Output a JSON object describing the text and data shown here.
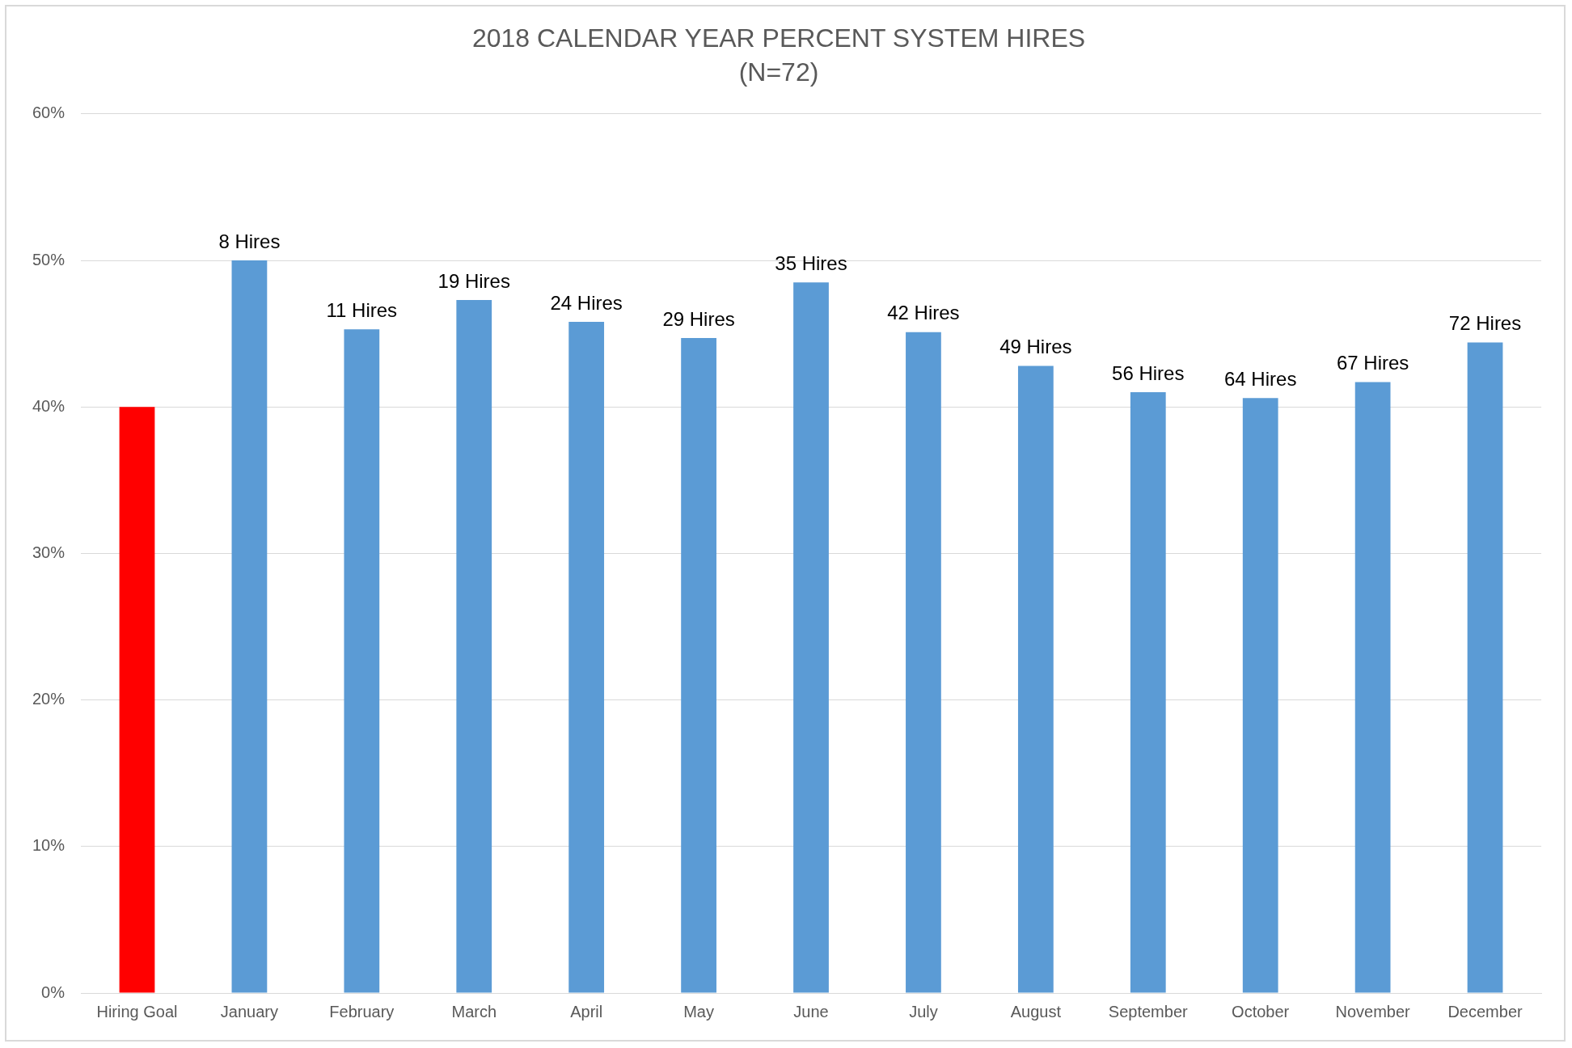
{
  "chart_data": {
    "type": "bar",
    "title": "2018 CALENDAR YEAR PERCENT SYSTEM HIRES",
    "subtitle": "(N=72)",
    "categories": [
      "Hiring Goal",
      "January",
      "February",
      "March",
      "April",
      "May",
      "June",
      "July",
      "August",
      "September",
      "October",
      "November",
      "December"
    ],
    "values": [
      40,
      50,
      45.3,
      47.3,
      45.8,
      44.7,
      48.5,
      45.1,
      42.8,
      41.0,
      40.6,
      41.7,
      44.4
    ],
    "colors": [
      "#ff0000",
      "#5b9bd5",
      "#5b9bd5",
      "#5b9bd5",
      "#5b9bd5",
      "#5b9bd5",
      "#5b9bd5",
      "#5b9bd5",
      "#5b9bd5",
      "#5b9bd5",
      "#5b9bd5",
      "#5b9bd5",
      "#5b9bd5"
    ],
    "annotations": [
      {
        "text": "8 Hires",
        "x": "January",
        "y": 50
      },
      {
        "text": "11 Hires",
        "x": "February",
        "y": 45.3
      },
      {
        "text": "19 Hires",
        "x": "March",
        "y": 47.3
      },
      {
        "text": "24 Hires",
        "x": "April",
        "y": 45.8
      },
      {
        "text": "29 Hires",
        "x": "May",
        "y": 44.7
      },
      {
        "text": "35 Hires",
        "x": "June",
        "y": 48.5
      },
      {
        "text": "42 Hires",
        "x": "July",
        "y": 45.1
      },
      {
        "text": "49 Hires",
        "x": "August",
        "y": 42.8
      },
      {
        "text": "56 Hires",
        "x": "September",
        "y": 41.0
      },
      {
        "text": "64 Hires",
        "x": "October",
        "y": 40.6
      },
      {
        "text": "67 Hires",
        "x": "November",
        "y": 41.7
      },
      {
        "text": "72 Hires",
        "x": "December",
        "y": 44.4
      }
    ],
    "ylim": [
      0,
      60
    ],
    "yticks": [
      {
        "value": 0,
        "label": "0%"
      },
      {
        "value": 10,
        "label": "10%"
      },
      {
        "value": 20,
        "label": "20%"
      },
      {
        "value": 30,
        "label": "30%"
      },
      {
        "value": 40,
        "label": "40%"
      },
      {
        "value": 50,
        "label": "50%"
      },
      {
        "value": 60,
        "label": "60%"
      }
    ],
    "grid": "y",
    "legend": false
  }
}
